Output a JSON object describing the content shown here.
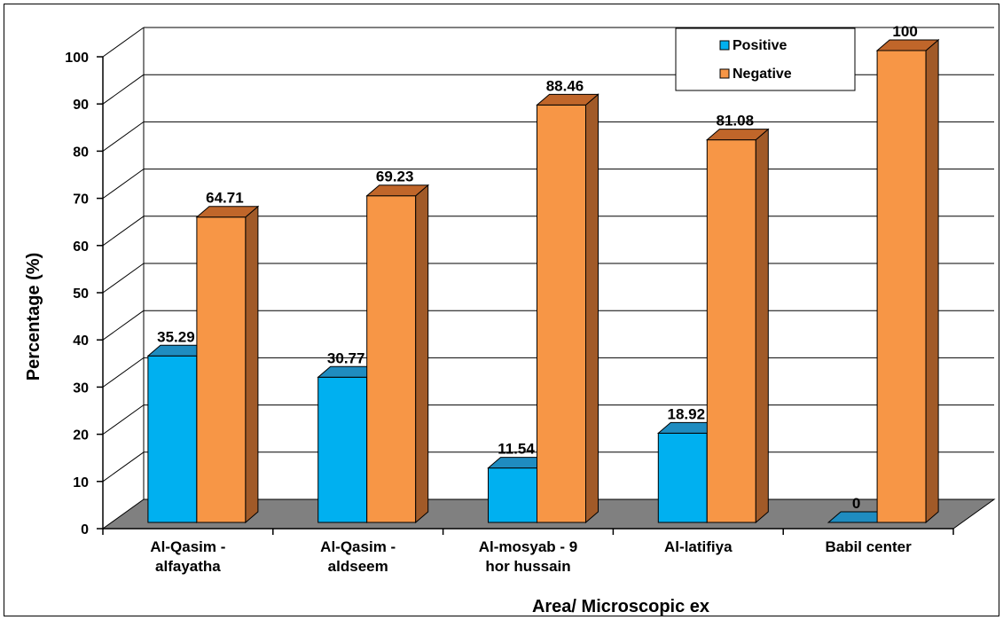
{
  "chart_data": {
    "type": "bar",
    "subtype": "3d-clustered-column",
    "categories": [
      [
        "Al-Qasim -",
        "alfayatha"
      ],
      [
        "Al-Qasim -",
        "aldseem"
      ],
      [
        "Al-mosyab - 9",
        "hor hussain"
      ],
      [
        "Al-latifiya"
      ],
      [
        "Babil center"
      ]
    ],
    "series": [
      {
        "name": "Positive",
        "values": [
          35.29,
          30.77,
          11.54,
          18.92,
          0
        ],
        "labels": [
          "35.29",
          "30.77",
          "11.54",
          "18.92",
          "0"
        ],
        "color": "#00B0F0",
        "top_color": "#1F8CC0",
        "side_color": "#1A6E9E"
      },
      {
        "name": "Negative",
        "values": [
          64.71,
          69.23,
          88.46,
          81.08,
          100
        ],
        "labels": [
          "64.71",
          "69.23",
          "88.46",
          "81.08",
          "100"
        ],
        "color": "#F79646",
        "top_color": "#C0662A",
        "side_color": "#A15A28"
      }
    ],
    "title": "",
    "xlabel": "Area/   Microscopic ex",
    "ylabel": "Percentage (%)",
    "ylim": [
      0,
      100
    ],
    "yticks": [
      0,
      10,
      20,
      30,
      40,
      50,
      60,
      70,
      80,
      90,
      100
    ],
    "grid": true,
    "legend": "top-right",
    "floor_color": "#808080"
  }
}
